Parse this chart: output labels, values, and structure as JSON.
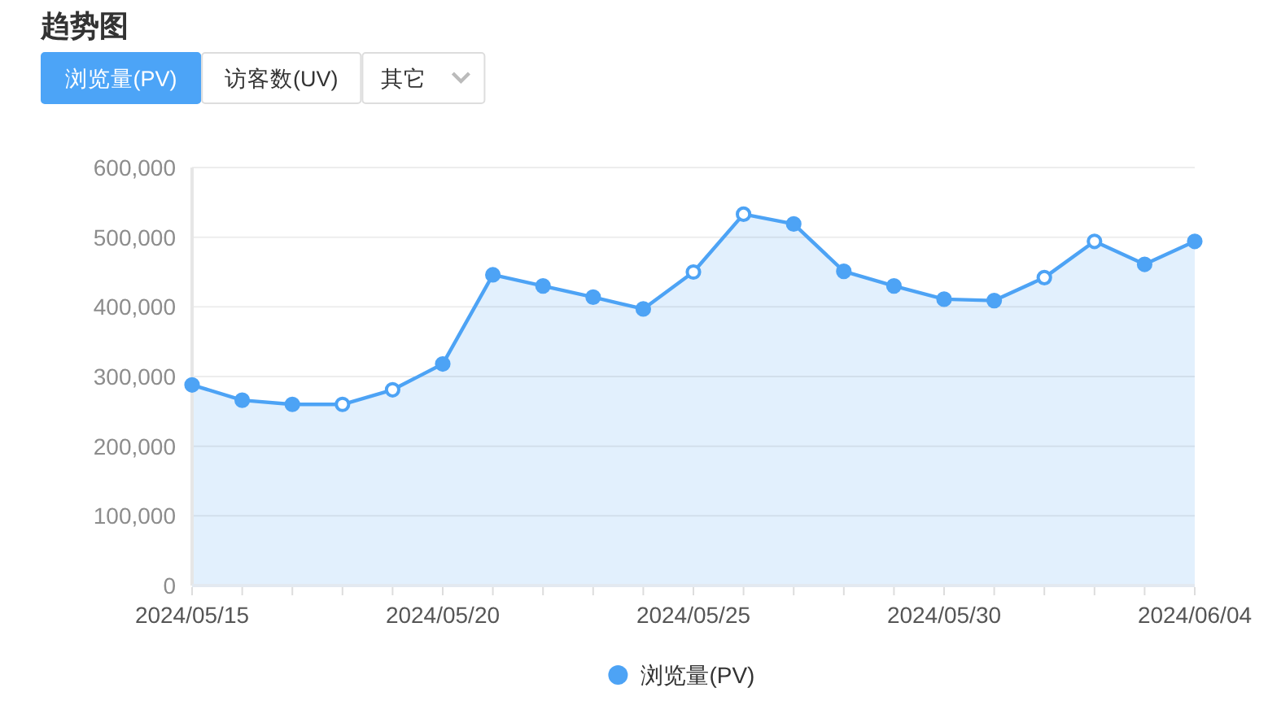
{
  "chart_data": {
    "type": "area",
    "title": "趋势图",
    "annotations": [
      "浏览量(PV)",
      "访客数(UV)",
      "其它"
    ],
    "x": [
      "2024-05-15",
      "2024-05-16",
      "2024-05-17",
      "2024-05-18",
      "2024-05-19",
      "2024-05-20",
      "2024-05-21",
      "2024-05-22",
      "2024-05-23",
      "2024-05-24",
      "2024-05-25",
      "2024-05-26",
      "2024-05-27",
      "2024-05-28",
      "2024-05-29",
      "2024-05-30",
      "2024-05-31",
      "2024-06-01",
      "2024-06-02",
      "2024-06-03",
      "2024-06-04"
    ],
    "series": [
      {
        "name": "浏览量(PV)",
        "color": "#4da3f5",
        "values": [
          288000,
          266000,
          260000,
          260000,
          281000,
          318000,
          446000,
          430000,
          414000,
          397000,
          450000,
          533000,
          519000,
          451000,
          430000,
          411000,
          409000,
          442000,
          494000,
          461000,
          494000
        ]
      }
    ],
    "xlim": [
      "2024-05-15",
      "2024-06-04"
    ],
    "xticks": [
      {
        "value": "2024-05-15",
        "label": "2024/05/15"
      },
      {
        "value": "2024-05-16",
        "label": null
      },
      {
        "value": "2024-05-17",
        "label": null
      },
      {
        "value": "2024-05-18",
        "label": null
      },
      {
        "value": "2024-05-19",
        "label": null
      },
      {
        "value": "2024-05-20",
        "label": "2024/05/20"
      },
      {
        "value": "2024-05-21",
        "label": null
      },
      {
        "value": "2024-05-22",
        "label": null
      },
      {
        "value": "2024-05-23",
        "label": null
      },
      {
        "value": "2024-05-24",
        "label": null
      },
      {
        "value": "2024-05-25",
        "label": "2024/05/25"
      },
      {
        "value": "2024-05-26",
        "label": null
      },
      {
        "value": "2024-05-27",
        "label": null
      },
      {
        "value": "2024-05-28",
        "label": null
      },
      {
        "value": "2024-05-29",
        "label": null
      },
      {
        "value": "2024-05-30",
        "label": "2024/05/30"
      },
      {
        "value": "2024-05-31",
        "label": null
      },
      {
        "value": "2024-06-01",
        "label": null
      },
      {
        "value": "2024-06-02",
        "label": null
      },
      {
        "value": "2024-06-03",
        "label": null
      },
      {
        "value": "2024-06-04",
        "label": "2024/06/04"
      }
    ],
    "ylim": [
      0,
      600000
    ],
    "yticks": [
      0,
      {
        "value": 100000,
        "label": "100,000"
      },
      {
        "value": 200000,
        "label": "200,000"
      },
      {
        "value": 300000,
        "label": "300,000"
      },
      {
        "value": 400000,
        "label": "400,000"
      },
      {
        "value": 500000,
        "label": "500,000"
      },
      {
        "value": 600000,
        "label": "600,000"
      }
    ],
    "grid": "y",
    "legend": "bottom",
    "marker": "circle"
  }
}
